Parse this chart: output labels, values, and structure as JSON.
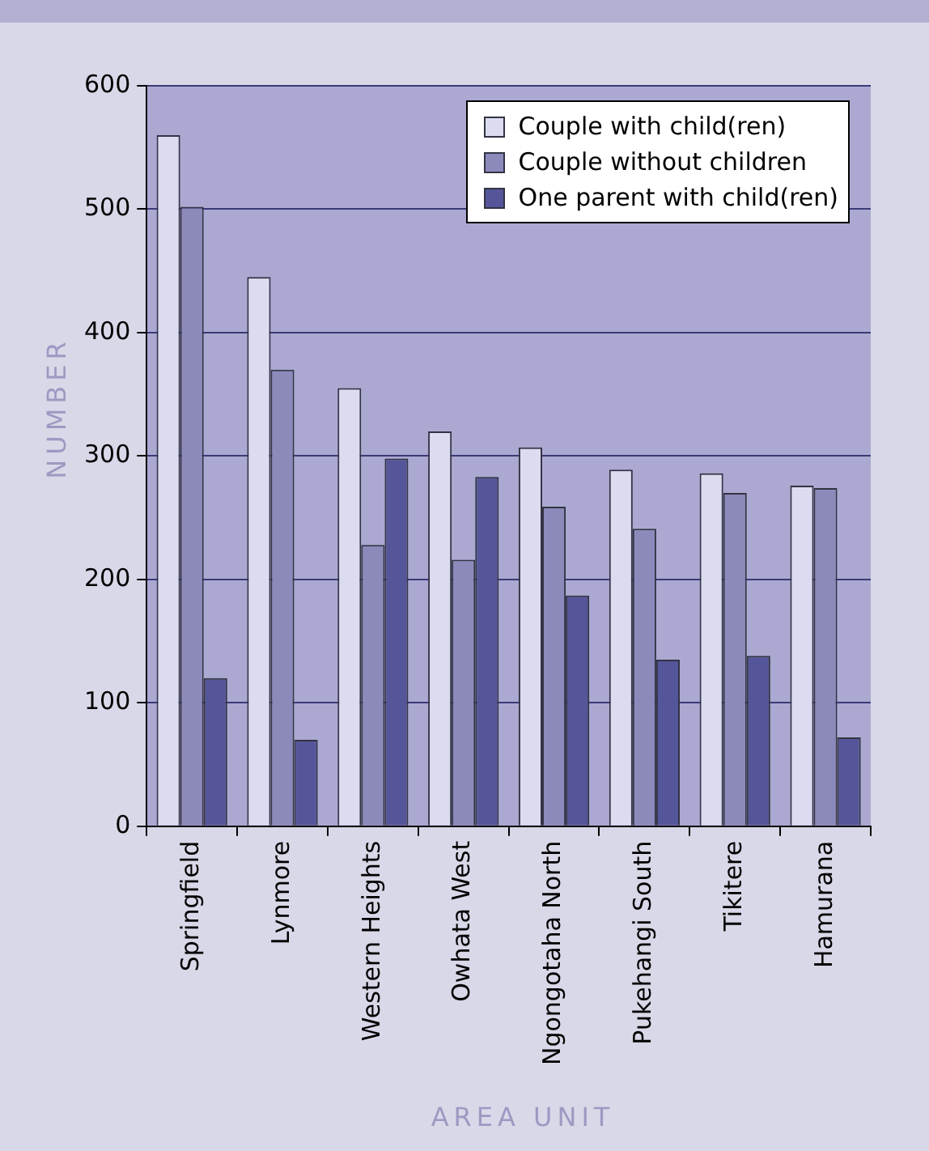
{
  "chart_data": {
    "type": "bar",
    "xlabel": "AREA UNIT",
    "ylabel": "NUMBER",
    "categories": [
      "Springfield",
      "Lynmore",
      "Western Heights",
      "Owhata West",
      "Ngongotaha North",
      "Pukehangi South",
      "Tikitere",
      "Hamurana"
    ],
    "series": [
      {
        "name": "Couple with child(ren)",
        "color": "#dcdcf0",
        "values": [
          560,
          445,
          355,
          320,
          307,
          289,
          286,
          276
        ]
      },
      {
        "name": "Couple without children",
        "color": "#8c8abb",
        "values": [
          502,
          370,
          228,
          216,
          259,
          241,
          270,
          274
        ]
      },
      {
        "name": "One parent with child(ren)",
        "color": "#55559a",
        "values": [
          120,
          70,
          298,
          283,
          187,
          135,
          138,
          72
        ]
      }
    ],
    "ylim": [
      0,
      600
    ],
    "yticks": [
      0,
      100,
      200,
      300,
      400,
      500,
      600
    ],
    "grid": "y",
    "legend": "top right"
  }
}
